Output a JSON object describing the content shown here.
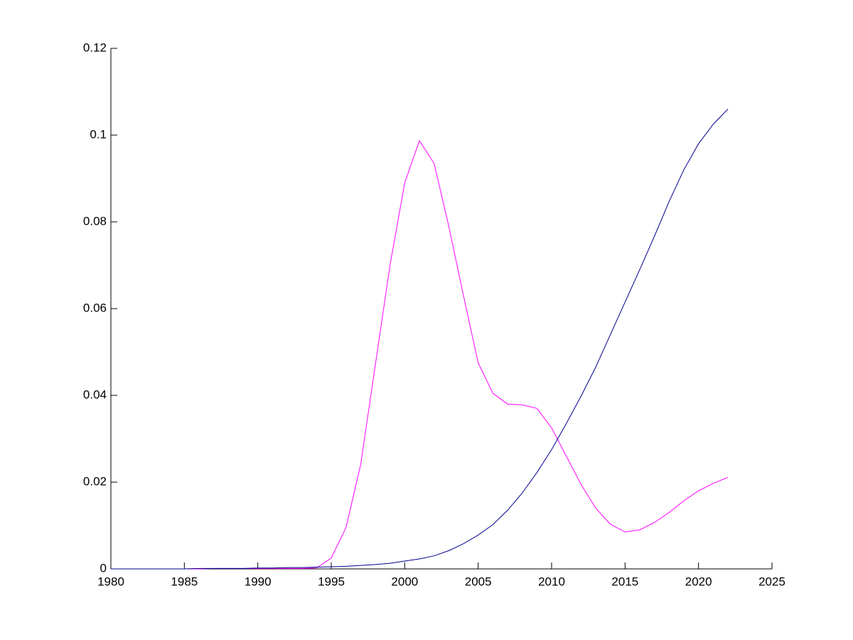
{
  "chart_data": {
    "type": "line",
    "x": [
      1980,
      1981,
      1982,
      1983,
      1984,
      1985,
      1986,
      1987,
      1988,
      1989,
      1990,
      1991,
      1992,
      1993,
      1994,
      1995,
      1996,
      1997,
      1998,
      1999,
      2000,
      2001,
      2002,
      2003,
      2004,
      2005,
      2006,
      2007,
      2008,
      2009,
      2010,
      2011,
      2012,
      2013,
      2014,
      2015,
      2016,
      2017,
      2018,
      2019,
      2020,
      2021,
      2022
    ],
    "series": [
      {
        "color": "#ff00ff",
        "values": [
          0,
          0,
          0,
          0,
          0,
          0,
          0,
          0.0001,
          0.0001,
          0.0001,
          0.0001,
          0.0001,
          0.0001,
          0.0001,
          0.0002,
          0.0025,
          0.0095,
          0.024,
          0.047,
          0.07,
          0.089,
          0.0987,
          0.0935,
          0.079,
          0.063,
          0.0475,
          0.0405,
          0.038,
          0.0378,
          0.037,
          0.0325,
          0.026,
          0.0195,
          0.014,
          0.0103,
          0.0085,
          0.009,
          0.0107,
          0.013,
          0.0157,
          0.018,
          0.0197,
          0.0211
        ]
      },
      {
        "color": "#00008b",
        "values": [
          0,
          0,
          0,
          0,
          0,
          0,
          0.0001,
          0.0001,
          0.0001,
          0.0001,
          0.0002,
          0.0002,
          0.0003,
          0.0003,
          0.0004,
          0.0005,
          0.0006,
          0.0008,
          0.001,
          0.0013,
          0.0018,
          0.0023,
          0.003,
          0.0042,
          0.0058,
          0.0078,
          0.0102,
          0.0135,
          0.0175,
          0.0222,
          0.0275,
          0.0335,
          0.0398,
          0.0465,
          0.054,
          0.0615,
          0.069,
          0.0767,
          0.0847,
          0.092,
          0.098,
          0.1025,
          0.106
        ]
      }
    ],
    "xlim": [
      1980,
      2025
    ],
    "xticks": [
      1980,
      1985,
      1990,
      1995,
      2000,
      2005,
      2010,
      2015,
      2020,
      2025
    ],
    "ylim": [
      0,
      0.12
    ],
    "yticks": [
      0,
      0.02,
      0.04,
      0.06,
      0.08,
      0.1,
      0.12
    ]
  }
}
